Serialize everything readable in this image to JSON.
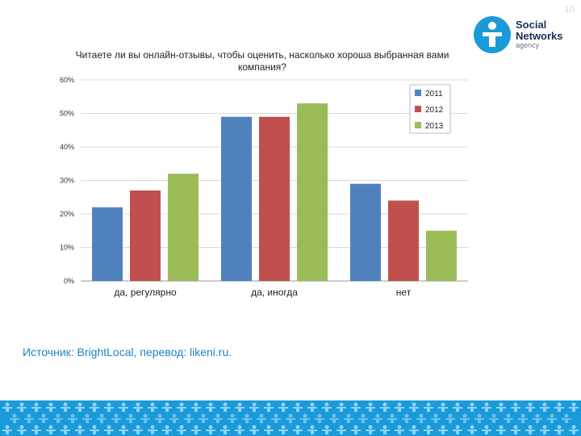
{
  "slide_number": "10",
  "logo": {
    "line1": "Social",
    "line2": "Networks",
    "line3": "agency",
    "color": "#1a9ad9"
  },
  "source_text": "Источник: BrightLocal, перевод: likeni.ru.",
  "colors": {
    "s2011": "#4f81bd",
    "s2012": "#c0504d",
    "s2013": "#9bbb59",
    "accent": "#1d84c5",
    "band": "#1a9ad9"
  },
  "chart_data": {
    "type": "bar",
    "title": "Читаете ли вы онлайн-отзывы, чтобы оценить, насколько хороша выбранная вами компания?",
    "categories": [
      "да, регулярно",
      "да, иногда",
      "нет"
    ],
    "series": [
      {
        "name": "2011",
        "values": [
          22,
          49,
          29
        ]
      },
      {
        "name": "2012",
        "values": [
          27,
          49,
          24
        ]
      },
      {
        "name": "2013",
        "values": [
          32,
          53,
          15
        ]
      }
    ],
    "ylim": [
      0,
      60
    ],
    "yticks": [
      "0%",
      "10%",
      "20%",
      "30%",
      "40%",
      "50%",
      "60%"
    ],
    "grid": true,
    "legend": "top-right",
    "xlabel": "",
    "ylabel": ""
  }
}
